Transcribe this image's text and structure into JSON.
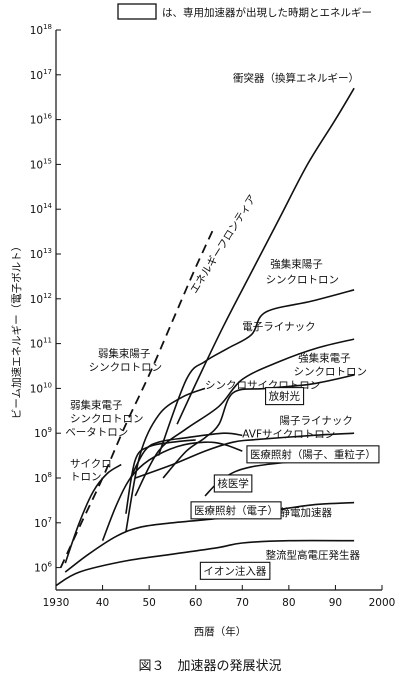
{
  "header_legend": "は、専用加速器が出現した時期とエネルギー",
  "chart_data": {
    "type": "line",
    "title": "",
    "xlabel": "西暦（年）",
    "ylabel": "ビーム加速エネルギー（電子ボルト）",
    "xlim": [
      1930,
      2000
    ],
    "ylim_log10": [
      5.5,
      18
    ],
    "x_ticks": [
      "1930",
      "40",
      "50",
      "60",
      "70",
      "80",
      "90",
      "2000"
    ],
    "x_tick_values": [
      1930,
      1940,
      1950,
      1960,
      1970,
      1980,
      1990,
      2000
    ],
    "y_tick_exponents": [
      "6",
      "7",
      "8",
      "9",
      "10",
      "11",
      "12",
      "13",
      "14",
      "15",
      "16",
      "17",
      "18"
    ],
    "y_tick_base": "10",
    "scale": "log-y",
    "series": [
      {
        "name": "衝突器（換算エネルギー）",
        "style": "solid",
        "x": [
          1956,
          1960,
          1966,
          1972,
          1978,
          1984,
          1990,
          1994
        ],
        "y": [
          9.2,
          10.1,
          11.4,
          12.6,
          13.8,
          15.0,
          16.0,
          16.7
        ]
      },
      {
        "name": "エネルギーフロンティア",
        "style": "dashed",
        "x": [
          1931,
          1935,
          1940,
          1945,
          1950,
          1955,
          1960,
          1964
        ],
        "y": [
          6.0,
          6.9,
          8.0,
          9.2,
          10.3,
          11.5,
          12.7,
          13.6
        ]
      },
      {
        "name": "強集束陽子シンクロトロン",
        "style": "solid",
        "x": [
          1952,
          1958,
          1962,
          1967,
          1972,
          1975,
          1985,
          1994
        ],
        "y": [
          8.5,
          10.2,
          10.6,
          10.9,
          11.2,
          11.7,
          11.95,
          12.2
        ]
      },
      {
        "name": "弱集束陽子シンクロトロン",
        "style": "solid",
        "x": [
          1945,
          1948,
          1952,
          1957,
          1962
        ],
        "y": [
          6.8,
          8.5,
          9.4,
          9.8,
          10.0
        ]
      },
      {
        "name": "電子ライナック",
        "style": "solid",
        "x": [
          1947,
          1952,
          1958,
          1965,
          1970,
          1978,
          1986,
          1994
        ],
        "y": [
          7.6,
          8.6,
          9.1,
          9.6,
          10.2,
          10.6,
          10.9,
          11.1
        ]
      },
      {
        "name": "強集束電子シンクロトロン",
        "style": "solid",
        "x": [
          1953,
          1958,
          1962,
          1965,
          1968,
          1975,
          1985,
          1994
        ],
        "y": [
          8.0,
          8.6,
          8.9,
          9.2,
          9.9,
          10.0,
          10.1,
          10.3
        ]
      },
      {
        "name": "シンクロサイクロトロン",
        "style": "solid",
        "x": [
          1946,
          1949,
          1952,
          1958,
          1966,
          1970
        ],
        "y": [
          8.0,
          8.6,
          8.8,
          8.9,
          9.0,
          8.95
        ]
      },
      {
        "name": "弱集束電子シンクロトロン",
        "style": "solid",
        "x": [
          1945,
          1947,
          1950,
          1955,
          1960
        ],
        "y": [
          7.2,
          8.4,
          8.7,
          8.8,
          8.85
        ]
      },
      {
        "name": "陽子ライナック",
        "style": "solid",
        "x": [
          1947,
          1955,
          1962,
          1968,
          1972,
          1985,
          1994
        ],
        "y": [
          8.0,
          8.3,
          8.6,
          8.8,
          8.85,
          8.95,
          9.0
        ]
      },
      {
        "name": "ベータトロン",
        "style": "solid",
        "x": [
          1940,
          1943,
          1946,
          1950,
          1956,
          1962,
          1966,
          1970
        ],
        "y": [
          6.6,
          7.4,
          8.0,
          8.4,
          8.7,
          8.8,
          8.75,
          8.6
        ]
      },
      {
        "name": "AVFサイクロトロン",
        "style": "solid",
        "x": [
          1962,
          1966,
          1972,
          1985,
          1994
        ],
        "y": [
          7.6,
          8.0,
          8.25,
          8.4,
          8.45
        ]
      },
      {
        "name": "サイクロトロン",
        "style": "solid",
        "x": [
          1932,
          1935,
          1938,
          1941,
          1944
        ],
        "y": [
          6.1,
          7.0,
          7.7,
          8.1,
          8.3
        ]
      },
      {
        "name": "静電加速器",
        "style": "solid",
        "x": [
          1932,
          1937,
          1943,
          1948,
          1955,
          1965,
          1975,
          1985,
          1994
        ],
        "y": [
          5.9,
          6.3,
          6.7,
          6.9,
          7.0,
          7.1,
          7.25,
          7.4,
          7.45
        ]
      },
      {
        "name": "整流型高電圧発生器",
        "style": "solid",
        "x": [
          1930,
          1935,
          1945,
          1955,
          1965,
          1970,
          1980,
          1994
        ],
        "y": [
          5.6,
          5.9,
          6.15,
          6.3,
          6.45,
          6.55,
          6.6,
          6.6
        ]
      }
    ],
    "labels": [
      {
        "text": "衝突器（換算エネルギー）",
        "x": 1968,
        "y": 16.85
      },
      {
        "text": "エネルギーフロンティア",
        "x": 1960,
        "y": 12.1,
        "rotated": true
      },
      {
        "text": "強集束陽子",
        "x": 1976,
        "y": 12.7
      },
      {
        "text": "シンクロトロン",
        "x": 1975,
        "y": 12.35
      },
      {
        "text": "電子ライナック",
        "x": 1970,
        "y": 11.3
      },
      {
        "text": "弱集束陽子",
        "x": 1939,
        "y": 10.7
      },
      {
        "text": "シンクロトロン",
        "x": 1937,
        "y": 10.4
      },
      {
        "text": "強集束電子",
        "x": 1982,
        "y": 10.6
      },
      {
        "text": "シンクロトロン",
        "x": 1981,
        "y": 10.3
      },
      {
        "text": "シンクロサイクロトロン",
        "x": 1962,
        "y": 10.0
      },
      {
        "text": "陽子ライナック",
        "x": 1978,
        "y": 9.2
      },
      {
        "text": "弱集束電子",
        "x": 1933,
        "y": 9.55
      },
      {
        "text": "シンクロトロン",
        "x": 1933,
        "y": 9.25
      },
      {
        "text": "ベータトロン",
        "x": 1932,
        "y": 8.95
      },
      {
        "text": "AVFサイクロトロン",
        "x": 1970,
        "y": 8.9
      },
      {
        "text": "サイクロ",
        "x": 1933,
        "y": 8.25
      },
      {
        "text": "トロン",
        "x": 1933,
        "y": 7.95
      },
      {
        "text": "静電加速器",
        "x": 1978,
        "y": 7.15
      },
      {
        "text": "整流型高電圧発生器",
        "x": 1975,
        "y": 6.2
      }
    ],
    "boxed_labels": [
      {
        "text": "放射光",
        "x": 1975,
        "y": 9.75
      },
      {
        "text": "医療照射（陽子、重粒子）",
        "x": 1971,
        "y": 8.45
      },
      {
        "text": "核医学",
        "x": 1964,
        "y": 7.8
      },
      {
        "text": "医療照射（電子）",
        "x": 1959,
        "y": 7.2
      },
      {
        "text": "イオン注入器",
        "x": 1961,
        "y": 5.85
      }
    ]
  },
  "caption": "図３　加速器の発展状況"
}
